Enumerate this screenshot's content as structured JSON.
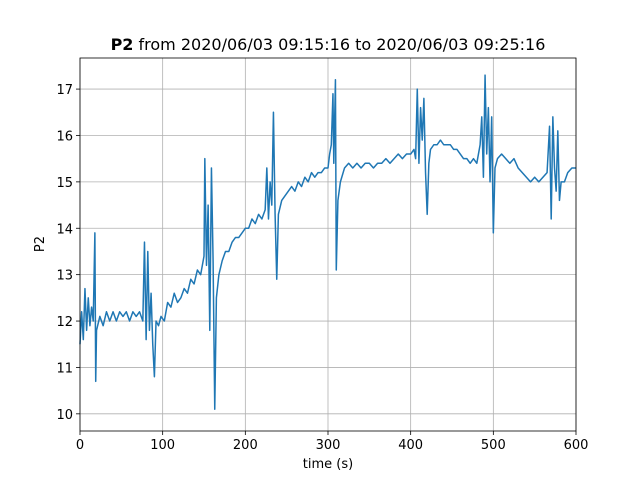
{
  "chart_data": {
    "type": "line",
    "title_bold": "P2",
    "title": "from 2020/06/03 09:15:16 to 2020/06/03 09:25:16",
    "xlabel": "time (s)",
    "ylabel": "P2",
    "color": "#1f77b4",
    "grid": true,
    "xlim": [
      0,
      600
    ],
    "xticks": [
      0,
      100,
      200,
      300,
      400,
      500,
      600
    ],
    "ylim": [
      9.63,
      17.67
    ],
    "yticks": [
      10,
      11,
      12,
      13,
      14,
      15,
      16,
      17
    ],
    "x": [
      0,
      2,
      4,
      6,
      8,
      10,
      12,
      14,
      16,
      18,
      19,
      20,
      24,
      28,
      32,
      36,
      40,
      44,
      48,
      52,
      56,
      60,
      64,
      68,
      72,
      76,
      78,
      80,
      82,
      84,
      86,
      88,
      90,
      92,
      95,
      98,
      102,
      106,
      110,
      114,
      118,
      122,
      126,
      130,
      134,
      138,
      142,
      146,
      150,
      151,
      153,
      155,
      157,
      159,
      161,
      163,
      165,
      168,
      172,
      176,
      180,
      184,
      188,
      192,
      196,
      200,
      204,
      208,
      212,
      216,
      220,
      224,
      226,
      228,
      230,
      232,
      234,
      236,
      238,
      240,
      244,
      248,
      252,
      256,
      260,
      264,
      268,
      272,
      276,
      280,
      284,
      288,
      292,
      296,
      300,
      302,
      304,
      306,
      307,
      309,
      310,
      312,
      315,
      320,
      325,
      330,
      335,
      340,
      345,
      350,
      355,
      360,
      365,
      370,
      375,
      380,
      385,
      390,
      395,
      400,
      404,
      406,
      408,
      410,
      412,
      414,
      416,
      418,
      420,
      422,
      424,
      428,
      432,
      436,
      440,
      444,
      448,
      452,
      456,
      460,
      464,
      468,
      472,
      476,
      480,
      484,
      486,
      488,
      490,
      492,
      494,
      496,
      498,
      500,
      502,
      505,
      510,
      515,
      520,
      525,
      530,
      535,
      540,
      545,
      550,
      555,
      560,
      565,
      568,
      570,
      572,
      574,
      576,
      578,
      580,
      582,
      586,
      590,
      595,
      600
    ],
    "values": [
      11.5,
      12.2,
      11.6,
      12.7,
      11.8,
      12.5,
      11.9,
      12.3,
      12.0,
      13.9,
      10.7,
      11.8,
      12.1,
      11.9,
      12.2,
      12.0,
      12.2,
      12.0,
      12.2,
      12.1,
      12.2,
      12.0,
      12.2,
      12.1,
      12.2,
      12.0,
      13.7,
      11.6,
      13.5,
      11.8,
      12.6,
      11.5,
      10.8,
      12.0,
      11.9,
      12.1,
      12.0,
      12.4,
      12.3,
      12.6,
      12.4,
      12.5,
      12.7,
      12.6,
      12.9,
      12.8,
      13.1,
      13.0,
      13.4,
      15.5,
      13.2,
      14.5,
      11.8,
      15.3,
      13.3,
      10.1,
      12.5,
      13.0,
      13.3,
      13.5,
      13.5,
      13.7,
      13.8,
      13.8,
      13.9,
      14.0,
      14.0,
      14.2,
      14.1,
      14.3,
      14.2,
      14.4,
      15.3,
      14.2,
      15.0,
      14.5,
      16.5,
      14.3,
      12.9,
      14.3,
      14.6,
      14.7,
      14.8,
      14.9,
      14.8,
      15.0,
      14.9,
      15.1,
      15.0,
      15.2,
      15.1,
      15.2,
      15.2,
      15.3,
      15.3,
      15.6,
      15.8,
      16.9,
      15.4,
      17.2,
      13.1,
      14.6,
      15.0,
      15.3,
      15.4,
      15.3,
      15.4,
      15.3,
      15.4,
      15.4,
      15.3,
      15.4,
      15.4,
      15.5,
      15.4,
      15.5,
      15.6,
      15.5,
      15.6,
      15.6,
      15.7,
      15.5,
      17.0,
      15.4,
      16.6,
      15.9,
      16.8,
      15.2,
      14.3,
      15.4,
      15.7,
      15.8,
      15.8,
      15.9,
      15.8,
      15.8,
      15.8,
      15.7,
      15.7,
      15.6,
      15.5,
      15.5,
      15.4,
      15.5,
      15.4,
      15.8,
      16.4,
      15.1,
      17.3,
      15.6,
      16.6,
      15.0,
      16.4,
      13.9,
      15.3,
      15.5,
      15.6,
      15.5,
      15.4,
      15.5,
      15.3,
      15.2,
      15.1,
      15.0,
      15.1,
      15.0,
      15.1,
      15.2,
      16.2,
      14.2,
      16.4,
      15.3,
      14.8,
      16.1,
      14.6,
      15.0,
      15.0,
      15.2,
      15.3,
      15.3
    ]
  }
}
